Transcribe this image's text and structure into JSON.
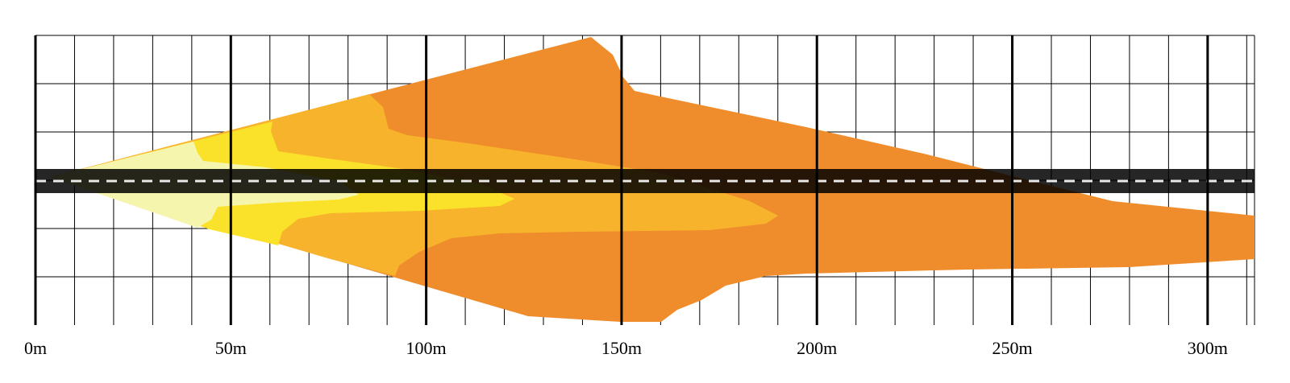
{
  "chart_data": {
    "type": "area",
    "title": "",
    "xlabel": "",
    "ylabel": "",
    "unit": "m",
    "xlim": [
      0,
      312
    ],
    "x_ticks": [
      {
        "value": 0,
        "label": "0m"
      },
      {
        "value": 50,
        "label": "50m"
      },
      {
        "value": 100,
        "label": "100m"
      },
      {
        "value": 150,
        "label": "150m"
      },
      {
        "value": 200,
        "label": "200m"
      },
      {
        "value": 250,
        "label": "250m"
      },
      {
        "value": 300,
        "label": "300m"
      }
    ],
    "grid": true,
    "legend": "none",
    "road": {
      "color": "#000000",
      "centerline_color": "#ffffff"
    },
    "zones": [
      {
        "color": "#ef8c2c",
        "reach_m": 312
      },
      {
        "color": "#f8b32c",
        "reach_m": 190
      },
      {
        "color": "#fbe22a",
        "reach_m": 124
      },
      {
        "color": "#f6f5ad",
        "reach_m": 83
      }
    ]
  }
}
